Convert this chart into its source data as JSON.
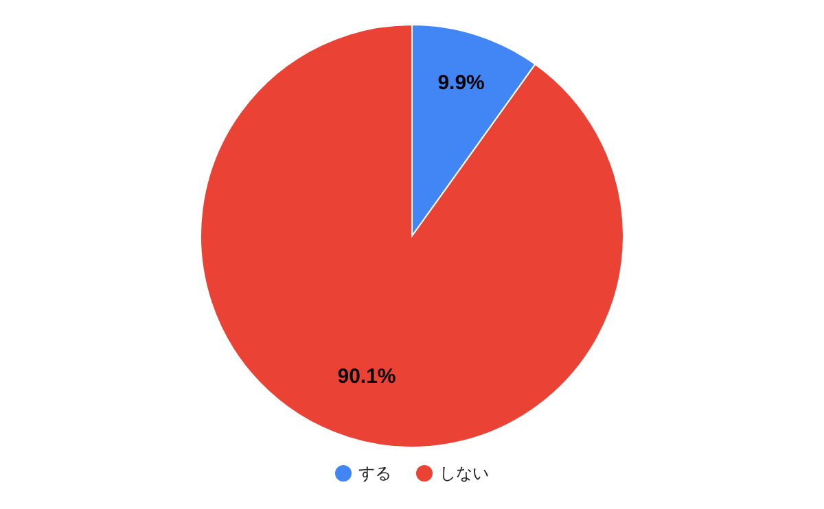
{
  "chart_data": {
    "type": "pie",
    "categories": [
      "する",
      "しない"
    ],
    "values": [
      9.9,
      90.1
    ],
    "colors": [
      "#4285f4",
      "#ea4335"
    ],
    "value_labels": [
      "9.9%",
      "90.1%"
    ],
    "legend": "bottom"
  }
}
